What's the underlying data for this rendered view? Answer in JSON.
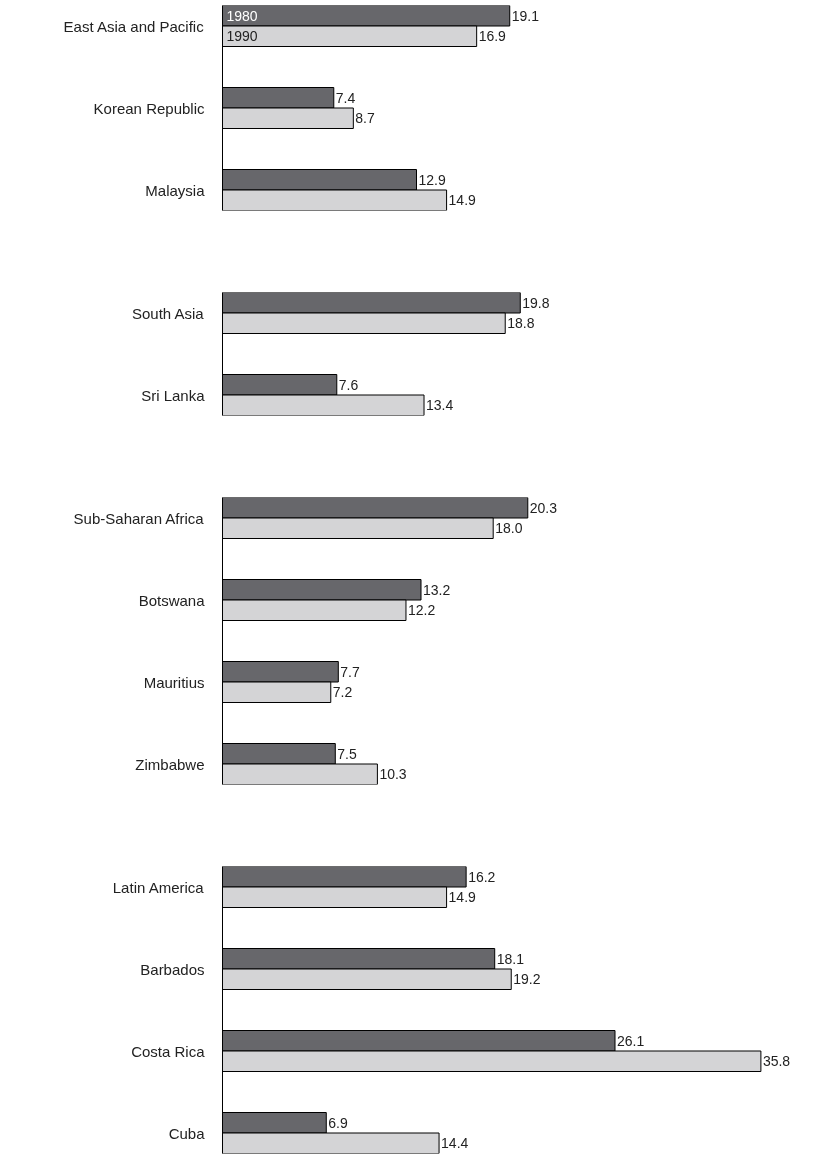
{
  "chart_data": [
    {
      "type": "bar",
      "orientation": "horizontal",
      "grid": false,
      "categories": [
        "East Asia and Pacific",
        "Korean Republic",
        "Malaysia"
      ],
      "series": [
        {
          "name": "1980",
          "color": "#67676b",
          "values": [
            19.1,
            7.4,
            12.9
          ],
          "value_labels": [
            "19.1",
            "7.4",
            "12.9"
          ]
        },
        {
          "name": "1990",
          "color": "#d4d4d6",
          "values": [
            16.9,
            8.7,
            14.9
          ],
          "value_labels": [
            "16.9",
            "8.7",
            "14.9"
          ]
        }
      ]
    },
    {
      "type": "bar",
      "orientation": "horizontal",
      "grid": false,
      "categories": [
        "South Asia",
        "Sri Lanka"
      ],
      "series": [
        {
          "color": "#67676b",
          "values": [
            19.8,
            7.6
          ],
          "value_labels": [
            "19.8",
            "7.6"
          ]
        },
        {
          "color": "#d4d4d6",
          "values": [
            18.8,
            13.4
          ],
          "value_labels": [
            "18.8",
            "13.4"
          ]
        }
      ]
    },
    {
      "type": "bar",
      "orientation": "horizontal",
      "grid": false,
      "categories": [
        "Sub-Saharan Africa",
        "Botswana",
        "Mauritius",
        "Zimbabwe"
      ],
      "series": [
        {
          "color": "#67676b",
          "values": [
            20.3,
            13.2,
            7.7,
            7.5
          ],
          "value_labels": [
            "20.3",
            "13.2",
            "7.7",
            "7.5"
          ]
        },
        {
          "color": "#d4d4d6",
          "values": [
            18.0,
            12.2,
            7.2,
            10.3
          ],
          "value_labels": [
            "18.0",
            "12.2",
            "7.2",
            "10.3"
          ]
        }
      ]
    },
    {
      "type": "bar",
      "orientation": "horizontal",
      "grid": false,
      "categories": [
        "Latin America",
        "Barbados",
        "Costa Rica",
        "Cuba"
      ],
      "series": [
        {
          "color": "#67676b",
          "values": [
            16.2,
            18.1,
            26.1,
            6.9
          ],
          "value_labels": [
            "16.2",
            "18.1",
            "26.1",
            "6.9"
          ]
        },
        {
          "color": "#d4d4d6",
          "values": [
            14.9,
            19.2,
            35.8,
            14.4
          ],
          "value_labels": [
            "14.9",
            "19.2",
            "35.8",
            "14.4"
          ]
        }
      ]
    }
  ]
}
